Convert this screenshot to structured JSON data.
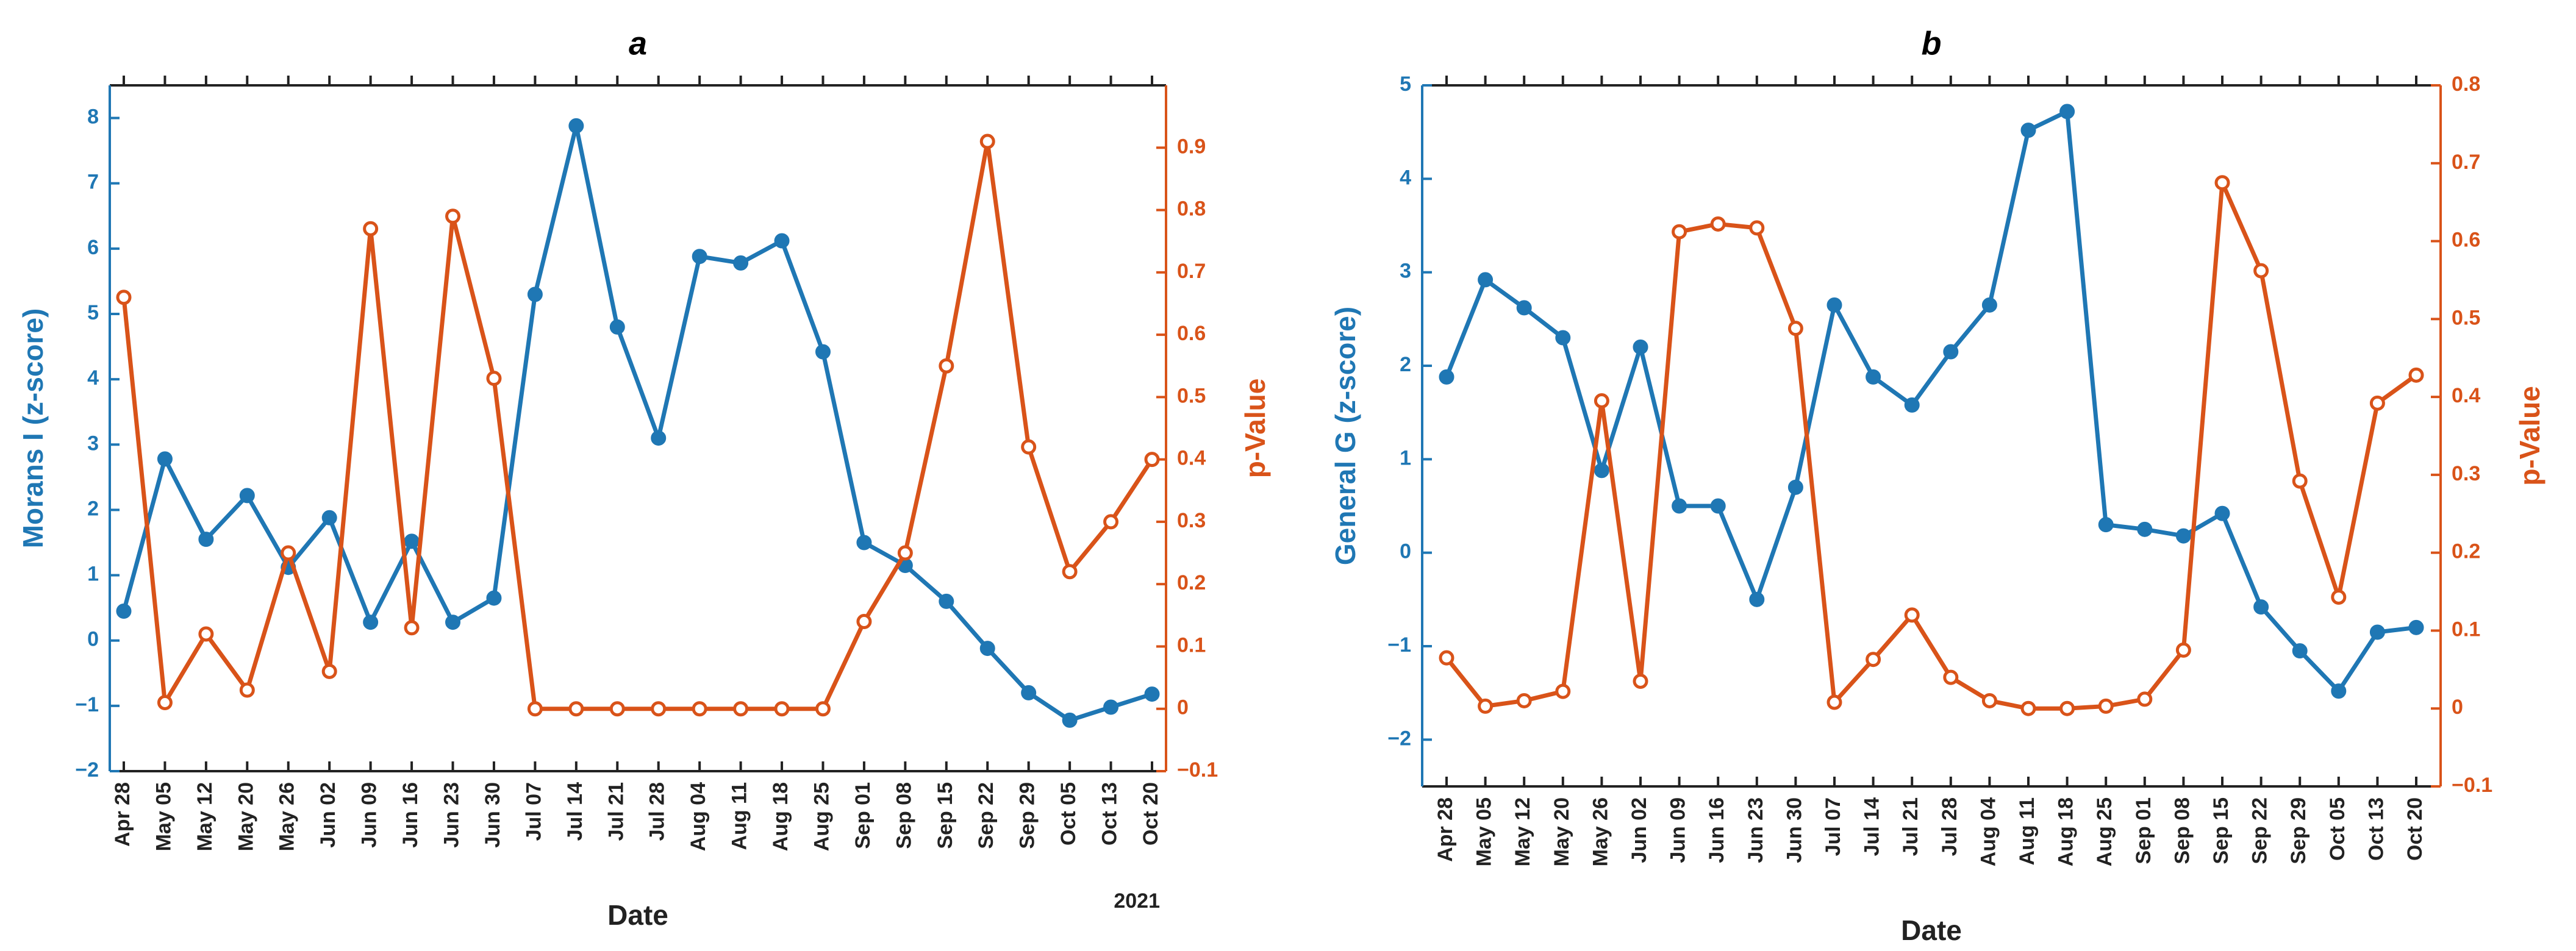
{
  "colors": {
    "left": "#1f77b4",
    "right": "#d95319",
    "axis": "#222222"
  },
  "chart_data": [
    {
      "type": "line",
      "title": "a",
      "xlabel": "Date",
      "year_label": "2021",
      "categories": [
        "Apr 28",
        "May 05",
        "May 12",
        "May 20",
        "May 26",
        "Jun 02",
        "Jun 09",
        "Jun 16",
        "Jun 23",
        "Jun 30",
        "Jul 07",
        "Jul 14",
        "Jul 21",
        "Jul 28",
        "Aug 04",
        "Aug 11",
        "Aug 18",
        "Aug 25",
        "Sep 01",
        "Sep 08",
        "Sep 15",
        "Sep 22",
        "Sep 29",
        "Oct 05",
        "Oct 13",
        "Oct 20"
      ],
      "left_axis": {
        "label": "Morans I (z-score)",
        "ylim": [
          -2,
          8.5
        ],
        "ticks": [
          -2,
          -1,
          0,
          1,
          2,
          3,
          4,
          5,
          6,
          7,
          8
        ],
        "tick_labels": [
          "−2",
          "−1",
          "0",
          "1",
          "2",
          "3",
          "4",
          "5",
          "6",
          "7",
          "8"
        ]
      },
      "right_axis": {
        "label": "p-Value",
        "ylim": [
          -0.1,
          1.0
        ],
        "ticks": [
          -0.1,
          0,
          0.1,
          0.2,
          0.3,
          0.4,
          0.5,
          0.6,
          0.7,
          0.8,
          0.9
        ],
        "tick_labels": [
          "−0.1",
          "0",
          "0.1",
          "0.2",
          "0.3",
          "0.4",
          "0.5",
          "0.6",
          "0.7",
          "0.8",
          "0.9"
        ]
      },
      "series": [
        {
          "name": "Morans I (z-score)",
          "axis": "left",
          "color": "#1f77b4",
          "values": [
            0.45,
            2.78,
            1.55,
            2.22,
            1.12,
            1.88,
            0.28,
            1.52,
            0.28,
            0.65,
            5.3,
            7.88,
            4.8,
            3.1,
            5.88,
            5.78,
            6.12,
            4.42,
            1.5,
            1.15,
            0.6,
            -0.12,
            -0.8,
            -1.22,
            -1.02,
            -0.82
          ]
        },
        {
          "name": "p-Value",
          "axis": "right",
          "color": "#d95319",
          "values": [
            0.66,
            0.01,
            0.12,
            0.03,
            0.25,
            0.06,
            0.77,
            0.13,
            0.79,
            0.53,
            0.0,
            0.0,
            0.0,
            0.0,
            0.0,
            0.0,
            0.0,
            0.0,
            0.14,
            0.25,
            0.55,
            0.91,
            0.42,
            0.22,
            0.3,
            0.4
          ]
        }
      ]
    },
    {
      "type": "line",
      "title": "b",
      "xlabel": "Date",
      "categories": [
        "Apr 28",
        "May 05",
        "May 12",
        "May 20",
        "May 26",
        "Jun 02",
        "Jun 09",
        "Jun 16",
        "Jun 23",
        "Jun 30",
        "Jul 07",
        "Jul 14",
        "Jul 21",
        "Jul 28",
        "Aug 04",
        "Aug 11",
        "Aug 18",
        "Aug 25",
        "Sep 01",
        "Sep 08",
        "Sep 15",
        "Sep 22",
        "Sep 29",
        "Oct 05",
        "Oct 13",
        "Oct 20"
      ],
      "left_axis": {
        "label": "General G (z-score)",
        "ylim": [
          -2.5,
          5
        ],
        "ticks": [
          -2,
          -1,
          0,
          1,
          2,
          3,
          4,
          5
        ],
        "tick_labels": [
          "−2",
          "−1",
          "0",
          "1",
          "2",
          "3",
          "4",
          "5"
        ]
      },
      "right_axis": {
        "label": "p-Value",
        "ylim": [
          -0.1,
          0.8
        ],
        "ticks": [
          -0.1,
          0,
          0.1,
          0.2,
          0.3,
          0.4,
          0.5,
          0.6,
          0.7,
          0.8
        ],
        "tick_labels": [
          "−0.1",
          "0",
          "0.1",
          "0.2",
          "0.3",
          "0.4",
          "0.5",
          "0.6",
          "0.7",
          "0.8"
        ]
      },
      "series": [
        {
          "name": "General G (z-score)",
          "axis": "left",
          "color": "#1f77b4",
          "values": [
            1.88,
            2.92,
            2.62,
            2.3,
            0.88,
            2.2,
            0.5,
            0.5,
            -0.5,
            0.7,
            2.65,
            1.88,
            1.58,
            2.15,
            2.65,
            4.52,
            4.72,
            0.3,
            0.25,
            0.18,
            0.42,
            -0.58,
            -1.05,
            -1.48,
            -0.85,
            -0.8
          ]
        },
        {
          "name": "p-Value",
          "axis": "right",
          "color": "#d95319",
          "values": [
            0.065,
            0.003,
            0.01,
            0.022,
            0.395,
            0.035,
            0.612,
            0.622,
            0.617,
            0.488,
            0.008,
            0.063,
            0.12,
            0.04,
            0.01,
            0.0,
            0.0,
            0.003,
            0.012,
            0.075,
            0.675,
            0.562,
            0.292,
            0.143,
            0.392,
            0.428
          ]
        }
      ]
    }
  ]
}
